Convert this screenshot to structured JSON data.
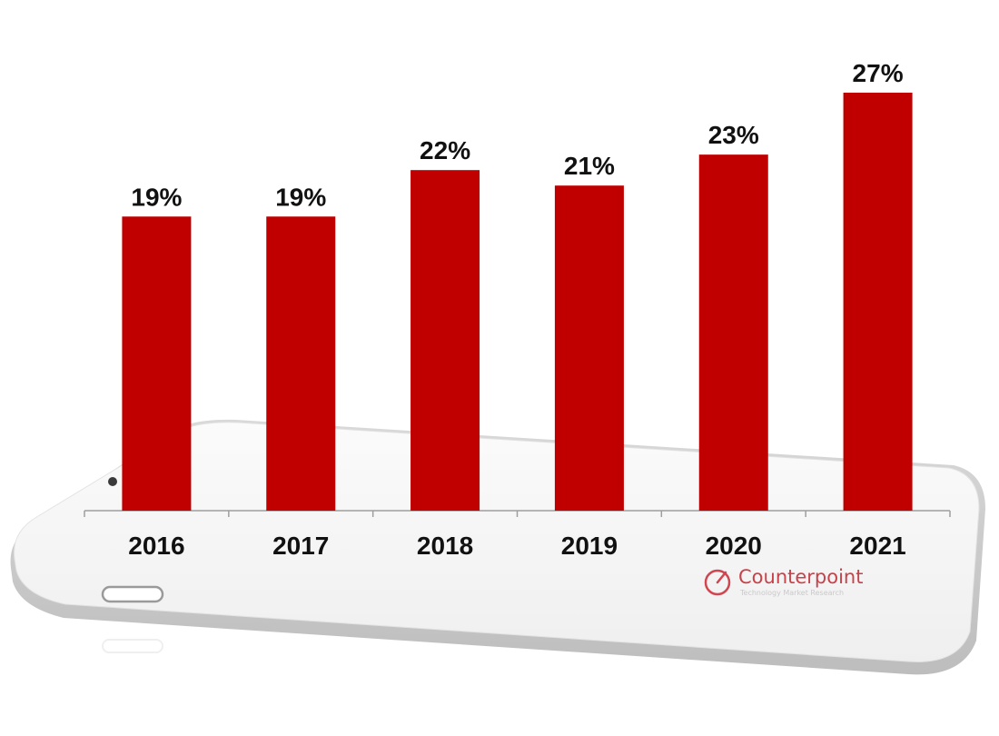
{
  "chart_data": {
    "type": "bar",
    "categories": [
      "2016",
      "2017",
      "2018",
      "2019",
      "2020",
      "2021"
    ],
    "values": [
      19,
      19,
      22,
      21,
      23,
      27
    ],
    "value_labels": [
      "19%",
      "19%",
      "22%",
      "21%",
      "23%",
      "27%"
    ],
    "title": "",
    "xlabel": "",
    "ylabel": "",
    "ylim": [
      0,
      27
    ],
    "grid": false,
    "bar_color": "#c00000"
  },
  "logo": {
    "name": "Counterpoint",
    "tagline": "Technology Market Research",
    "color": "#d04650"
  }
}
